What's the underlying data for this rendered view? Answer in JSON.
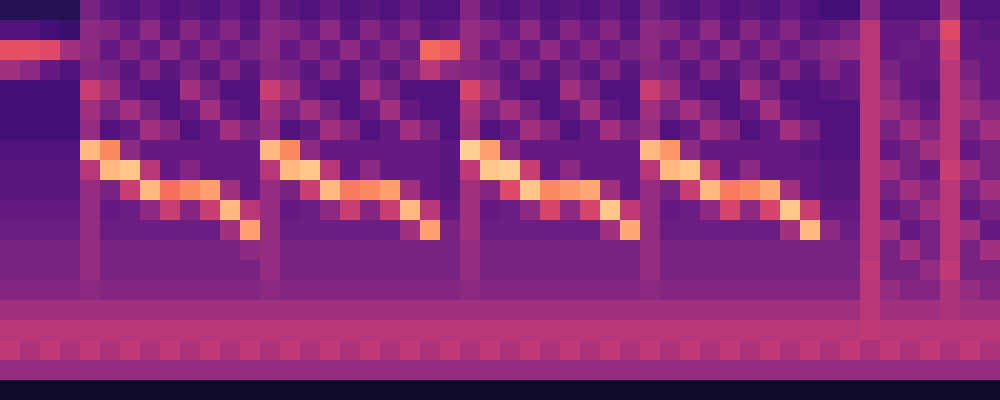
{
  "chart_data": {
    "type": "heatmap",
    "tick_labels": false,
    "color": "magma",
    "color_range": [
      0,
      100
    ],
    "cells": [
      [
        15,
        15,
        15,
        15,
        35,
        28,
        25,
        30,
        25,
        28,
        25,
        30,
        25,
        35,
        28,
        25,
        30,
        25,
        28,
        25,
        30,
        25,
        25,
        38,
        28,
        25,
        30,
        25,
        28,
        25,
        30,
        25,
        35,
        28,
        25,
        30,
        25,
        28,
        25,
        30,
        25,
        22,
        22,
        40,
        25,
        25,
        25,
        45,
        25,
        25
      ],
      [
        25,
        25,
        22,
        20,
        40,
        38,
        30,
        40,
        28,
        38,
        30,
        38,
        28,
        40,
        38,
        30,
        40,
        28,
        38,
        30,
        38,
        28,
        30,
        42,
        38,
        30,
        40,
        28,
        38,
        30,
        38,
        28,
        40,
        38,
        30,
        40,
        28,
        38,
        30,
        38,
        28,
        30,
        35,
        50,
        30,
        30,
        35,
        60,
        30,
        28
      ],
      [
        62,
        62,
        60,
        45,
        40,
        30,
        38,
        30,
        40,
        30,
        38,
        30,
        35,
        40,
        30,
        38,
        30,
        40,
        30,
        38,
        32,
        68,
        65,
        42,
        30,
        38,
        30,
        40,
        30,
        38,
        30,
        35,
        40,
        30,
        38,
        30,
        40,
        30,
        38,
        30,
        35,
        40,
        42,
        50,
        30,
        32,
        30,
        55,
        30,
        30
      ],
      [
        45,
        40,
        30,
        25,
        38,
        35,
        28,
        38,
        28,
        35,
        28,
        38,
        28,
        38,
        35,
        28,
        38,
        28,
        35,
        28,
        38,
        50,
        40,
        38,
        35,
        28,
        38,
        28,
        35,
        28,
        38,
        28,
        38,
        35,
        28,
        38,
        28,
        35,
        28,
        38,
        28,
        38,
        30,
        50,
        35,
        30,
        30,
        50,
        35,
        30
      ],
      [
        22,
        22,
        22,
        22,
        55,
        45,
        30,
        25,
        25,
        45,
        35,
        25,
        25,
        55,
        45,
        30,
        25,
        25,
        45,
        35,
        25,
        25,
        25,
        58,
        45,
        30,
        25,
        25,
        45,
        35,
        25,
        25,
        55,
        45,
        30,
        25,
        25,
        45,
        35,
        25,
        25,
        28,
        30,
        50,
        40,
        30,
        28,
        50,
        40,
        30
      ],
      [
        22,
        22,
        22,
        22,
        45,
        35,
        45,
        35,
        25,
        30,
        45,
        30,
        25,
        45,
        35,
        45,
        35,
        25,
        30,
        45,
        30,
        25,
        25,
        48,
        35,
        45,
        35,
        25,
        30,
        45,
        30,
        25,
        45,
        35,
        45,
        35,
        25,
        30,
        45,
        30,
        25,
        25,
        25,
        50,
        45,
        38,
        30,
        50,
        45,
        38
      ],
      [
        22,
        22,
        22,
        22,
        42,
        25,
        30,
        45,
        38,
        25,
        30,
        45,
        35,
        42,
        25,
        30,
        45,
        38,
        25,
        30,
        45,
        35,
        25,
        45,
        25,
        30,
        45,
        38,
        25,
        30,
        45,
        35,
        42,
        25,
        30,
        45,
        38,
        25,
        30,
        45,
        35,
        25,
        25,
        50,
        35,
        45,
        38,
        50,
        35,
        45
      ],
      [
        25,
        25,
        25,
        25,
        85,
        75,
        40,
        30,
        30,
        30,
        30,
        30,
        30,
        85,
        75,
        40,
        30,
        30,
        30,
        30,
        30,
        30,
        28,
        90,
        80,
        40,
        30,
        30,
        30,
        30,
        30,
        30,
        85,
        78,
        40,
        30,
        30,
        30,
        30,
        30,
        28,
        25,
        25,
        50,
        30,
        35,
        45,
        50,
        30,
        35
      ],
      [
        28,
        28,
        28,
        28,
        50,
        85,
        88,
        50,
        30,
        38,
        30,
        30,
        30,
        50,
        85,
        88,
        50,
        30,
        40,
        30,
        30,
        30,
        28,
        52,
        88,
        90,
        55,
        30,
        40,
        30,
        30,
        30,
        50,
        85,
        88,
        50,
        30,
        40,
        30,
        30,
        30,
        28,
        28,
        50,
        45,
        35,
        30,
        55,
        45,
        35
      ],
      [
        28,
        28,
        28,
        28,
        42,
        35,
        55,
        85,
        70,
        75,
        80,
        45,
        30,
        42,
        35,
        55,
        85,
        72,
        75,
        80,
        45,
        30,
        28,
        45,
        38,
        60,
        88,
        75,
        78,
        82,
        45,
        30,
        42,
        35,
        55,
        85,
        72,
        75,
        82,
        45,
        30,
        28,
        28,
        50,
        35,
        45,
        38,
        50,
        35,
        45
      ],
      [
        30,
        30,
        30,
        30,
        42,
        30,
        32,
        40,
        55,
        38,
        55,
        85,
        50,
        42,
        30,
        32,
        40,
        55,
        38,
        55,
        85,
        50,
        30,
        45,
        30,
        32,
        40,
        58,
        40,
        58,
        88,
        52,
        42,
        30,
        32,
        40,
        58,
        40,
        58,
        88,
        55,
        30,
        30,
        50,
        30,
        35,
        45,
        50,
        30,
        35
      ],
      [
        32,
        32,
        32,
        32,
        42,
        32,
        32,
        32,
        32,
        32,
        32,
        45,
        80,
        42,
        32,
        32,
        32,
        32,
        32,
        32,
        45,
        80,
        35,
        45,
        32,
        32,
        32,
        32,
        32,
        32,
        45,
        82,
        42,
        32,
        32,
        32,
        32,
        32,
        32,
        45,
        85,
        40,
        32,
        50,
        45,
        30,
        35,
        50,
        45,
        30
      ],
      [
        35,
        35,
        35,
        35,
        42,
        35,
        35,
        35,
        35,
        35,
        35,
        35,
        40,
        42,
        35,
        35,
        35,
        35,
        35,
        35,
        35,
        35,
        35,
        42,
        35,
        35,
        35,
        35,
        35,
        35,
        35,
        35,
        42,
        35,
        35,
        35,
        35,
        35,
        35,
        35,
        35,
        35,
        35,
        50,
        35,
        45,
        35,
        50,
        35,
        45
      ],
      [
        35,
        35,
        35,
        35,
        42,
        35,
        35,
        35,
        35,
        35,
        35,
        35,
        35,
        42,
        35,
        35,
        35,
        35,
        35,
        35,
        35,
        35,
        35,
        42,
        35,
        35,
        35,
        35,
        35,
        35,
        35,
        35,
        42,
        35,
        35,
        35,
        35,
        35,
        35,
        35,
        35,
        35,
        35,
        52,
        35,
        35,
        42,
        52,
        35,
        35
      ],
      [
        38,
        38,
        38,
        38,
        40,
        38,
        38,
        38,
        38,
        38,
        38,
        38,
        38,
        40,
        38,
        38,
        38,
        38,
        38,
        38,
        38,
        38,
        38,
        40,
        38,
        38,
        38,
        38,
        38,
        38,
        38,
        38,
        40,
        38,
        38,
        38,
        38,
        38,
        38,
        38,
        38,
        38,
        38,
        50,
        42,
        38,
        38,
        48,
        42,
        38
      ],
      [
        45,
        45,
        45,
        45,
        45,
        45,
        45,
        45,
        45,
        45,
        45,
        45,
        45,
        45,
        45,
        45,
        45,
        45,
        45,
        45,
        45,
        45,
        45,
        45,
        45,
        45,
        45,
        45,
        45,
        45,
        45,
        45,
        45,
        45,
        45,
        45,
        45,
        45,
        45,
        45,
        45,
        45,
        45,
        50,
        45,
        45,
        45,
        48,
        45,
        45
      ],
      [
        50,
        50,
        50,
        50,
        50,
        50,
        50,
        50,
        50,
        50,
        50,
        50,
        50,
        50,
        50,
        50,
        50,
        50,
        50,
        50,
        50,
        50,
        50,
        50,
        50,
        50,
        50,
        50,
        50,
        50,
        50,
        50,
        50,
        50,
        50,
        50,
        50,
        50,
        50,
        50,
        50,
        50,
        50,
        52,
        50,
        50,
        50,
        50,
        50,
        50
      ],
      [
        52,
        48,
        52,
        48,
        52,
        48,
        52,
        48,
        52,
        48,
        52,
        48,
        52,
        48,
        52,
        48,
        52,
        48,
        52,
        48,
        52,
        48,
        52,
        48,
        52,
        48,
        52,
        48,
        52,
        48,
        52,
        48,
        52,
        48,
        52,
        48,
        52,
        48,
        52,
        48,
        52,
        48,
        52,
        48,
        52,
        48,
        52,
        48,
        52,
        48
      ],
      [
        42,
        42,
        42,
        42,
        42,
        42,
        42,
        42,
        42,
        42,
        42,
        42,
        42,
        42,
        42,
        42,
        42,
        42,
        42,
        42,
        42,
        42,
        42,
        42,
        42,
        42,
        42,
        42,
        42,
        42,
        42,
        42,
        42,
        42,
        42,
        42,
        42,
        42,
        42,
        42,
        42,
        42,
        42,
        42,
        42,
        42,
        42,
        42,
        42,
        42
      ],
      [
        8,
        8,
        8,
        8,
        8,
        8,
        8,
        8,
        8,
        8,
        8,
        8,
        8,
        8,
        8,
        8,
        8,
        8,
        8,
        8,
        8,
        8,
        8,
        8,
        8,
        8,
        8,
        8,
        8,
        8,
        8,
        8,
        8,
        8,
        8,
        8,
        8,
        8,
        8,
        8,
        8,
        8,
        8,
        8,
        8,
        8,
        8,
        8,
        8,
        8
      ]
    ]
  }
}
